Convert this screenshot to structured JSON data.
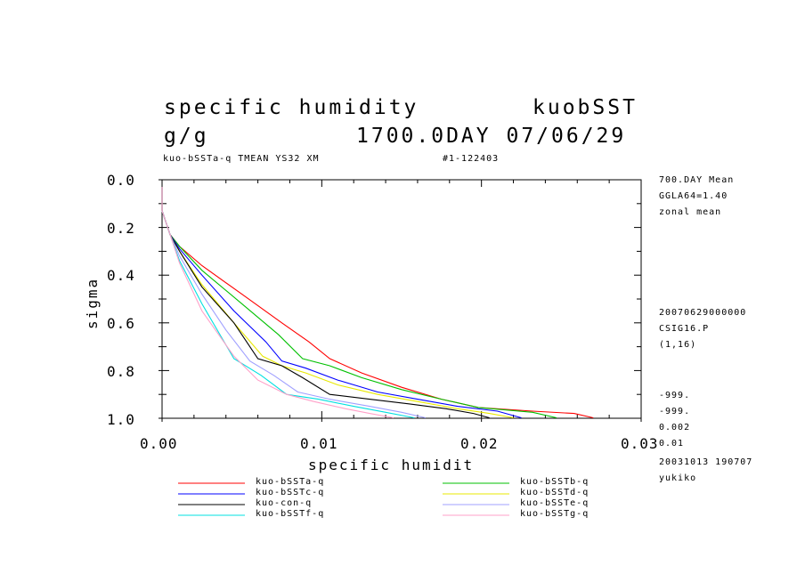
{
  "header": {
    "title_left": "specific humidity",
    "title_right": "kuobSST",
    "units": "g/g",
    "time_stamp": "1700.0DAY 07/06/29",
    "sub_left": "kuo-bSSTa-q TMEAN YS32 XM",
    "sub_right": "#1-122403"
  },
  "side_info": {
    "l1": "700.DAY Mean",
    "l2": "GGLA64=1.40",
    "l3": "zonal mean",
    "l4": "20070629000000",
    "l5": "CSIG16.P",
    "l6": "(1,16)",
    "l7": "-999.",
    "l8": "-999.",
    "l9": "0.002",
    "l10": "0.01",
    "l11": "20031013 190707",
    "l12": "yukiko"
  },
  "chart_data": {
    "type": "line",
    "xlabel": "specific humidit",
    "ylabel": "sigma",
    "xlim": [
      0,
      0.03
    ],
    "ylim": [
      0,
      1
    ],
    "y_inverted": true,
    "xticks": [
      "0.00",
      "0.01",
      "0.02",
      "0.03"
    ],
    "yticks": [
      "0.0",
      "0.2",
      "0.4",
      "0.6",
      "0.8",
      "1.0"
    ],
    "legend_placement": "below",
    "series": [
      {
        "name": "kuo-bSSTa-q",
        "color": "#ff0000",
        "x": [
          0.0,
          0.0,
          0.0005,
          0.0011,
          0.0025,
          0.005,
          0.0075,
          0.0092,
          0.0105,
          0.0125,
          0.015,
          0.0175,
          0.0198,
          0.0232,
          0.0258,
          0.027
        ],
        "y": [
          0.03,
          0.13,
          0.23,
          0.28,
          0.36,
          0.48,
          0.6,
          0.68,
          0.75,
          0.81,
          0.87,
          0.92,
          0.955,
          0.97,
          0.98,
          0.998
        ]
      },
      {
        "name": "kuo-bSSTb-q",
        "color": "#00c000",
        "x": [
          0.0,
          0.0,
          0.0005,
          0.0011,
          0.0025,
          0.005,
          0.0073,
          0.0088,
          0.0105,
          0.0125,
          0.015,
          0.0175,
          0.0198,
          0.0232,
          0.0247
        ],
        "y": [
          0.03,
          0.13,
          0.23,
          0.28,
          0.38,
          0.52,
          0.65,
          0.75,
          0.78,
          0.83,
          0.88,
          0.92,
          0.955,
          0.975,
          0.998
        ]
      },
      {
        "name": "kuo-bSSTc-q",
        "color": "#0000ff",
        "x": [
          0.0,
          0.0,
          0.0005,
          0.0011,
          0.0025,
          0.0045,
          0.0065,
          0.0075,
          0.009,
          0.011,
          0.0135,
          0.016,
          0.0185,
          0.021,
          0.0225
        ],
        "y": [
          0.03,
          0.13,
          0.23,
          0.29,
          0.4,
          0.55,
          0.68,
          0.76,
          0.79,
          0.84,
          0.89,
          0.92,
          0.95,
          0.97,
          0.998
        ]
      },
      {
        "name": "kuo-bSSTd-q",
        "color": "#e8e800",
        "x": [
          0.0,
          0.0,
          0.0005,
          0.0011,
          0.0025,
          0.0045,
          0.0063,
          0.0075,
          0.009,
          0.011,
          0.0135,
          0.016,
          0.0185,
          0.0205,
          0.022
        ],
        "y": [
          0.03,
          0.13,
          0.23,
          0.3,
          0.44,
          0.6,
          0.74,
          0.78,
          0.81,
          0.86,
          0.9,
          0.93,
          0.96,
          0.98,
          0.998
        ]
      },
      {
        "name": "kuo-con-q",
        "color": "#000000",
        "x": [
          0.0,
          0.0,
          0.0005,
          0.0011,
          0.0025,
          0.0045,
          0.006,
          0.0075,
          0.0088,
          0.0105,
          0.013,
          0.0155,
          0.0178,
          0.0195,
          0.0205
        ],
        "y": [
          0.03,
          0.13,
          0.23,
          0.3,
          0.45,
          0.6,
          0.75,
          0.78,
          0.83,
          0.9,
          0.92,
          0.94,
          0.96,
          0.98,
          0.998
        ]
      },
      {
        "name": "kuo-bSSTe-q",
        "color": "#a0a0ff",
        "x": [
          0.0,
          0.0,
          0.0005,
          0.0011,
          0.0025,
          0.004,
          0.0055,
          0.007,
          0.0085,
          0.0105,
          0.013,
          0.015,
          0.0165
        ],
        "y": [
          0.03,
          0.13,
          0.23,
          0.32,
          0.48,
          0.63,
          0.76,
          0.82,
          0.89,
          0.92,
          0.95,
          0.975,
          0.998
        ]
      },
      {
        "name": "kuo-bSSTf-q",
        "color": "#00e0e0",
        "x": [
          0.0,
          0.0,
          0.0005,
          0.0011,
          0.0025,
          0.0045,
          0.0062,
          0.0078,
          0.0098,
          0.012,
          0.014,
          0.0158
        ],
        "y": [
          0.03,
          0.13,
          0.23,
          0.34,
          0.52,
          0.75,
          0.82,
          0.9,
          0.92,
          0.95,
          0.975,
          0.998
        ]
      },
      {
        "name": "kuo-bSSTg-q",
        "color": "#ffa0c8",
        "x": [
          0.0,
          0.0,
          0.0005,
          0.0011,
          0.0025,
          0.0045,
          0.006,
          0.0078,
          0.0095,
          0.0115,
          0.013,
          0.0145
        ],
        "y": [
          0.03,
          0.13,
          0.23,
          0.35,
          0.55,
          0.74,
          0.84,
          0.9,
          0.93,
          0.96,
          0.98,
          0.998
        ]
      }
    ]
  }
}
